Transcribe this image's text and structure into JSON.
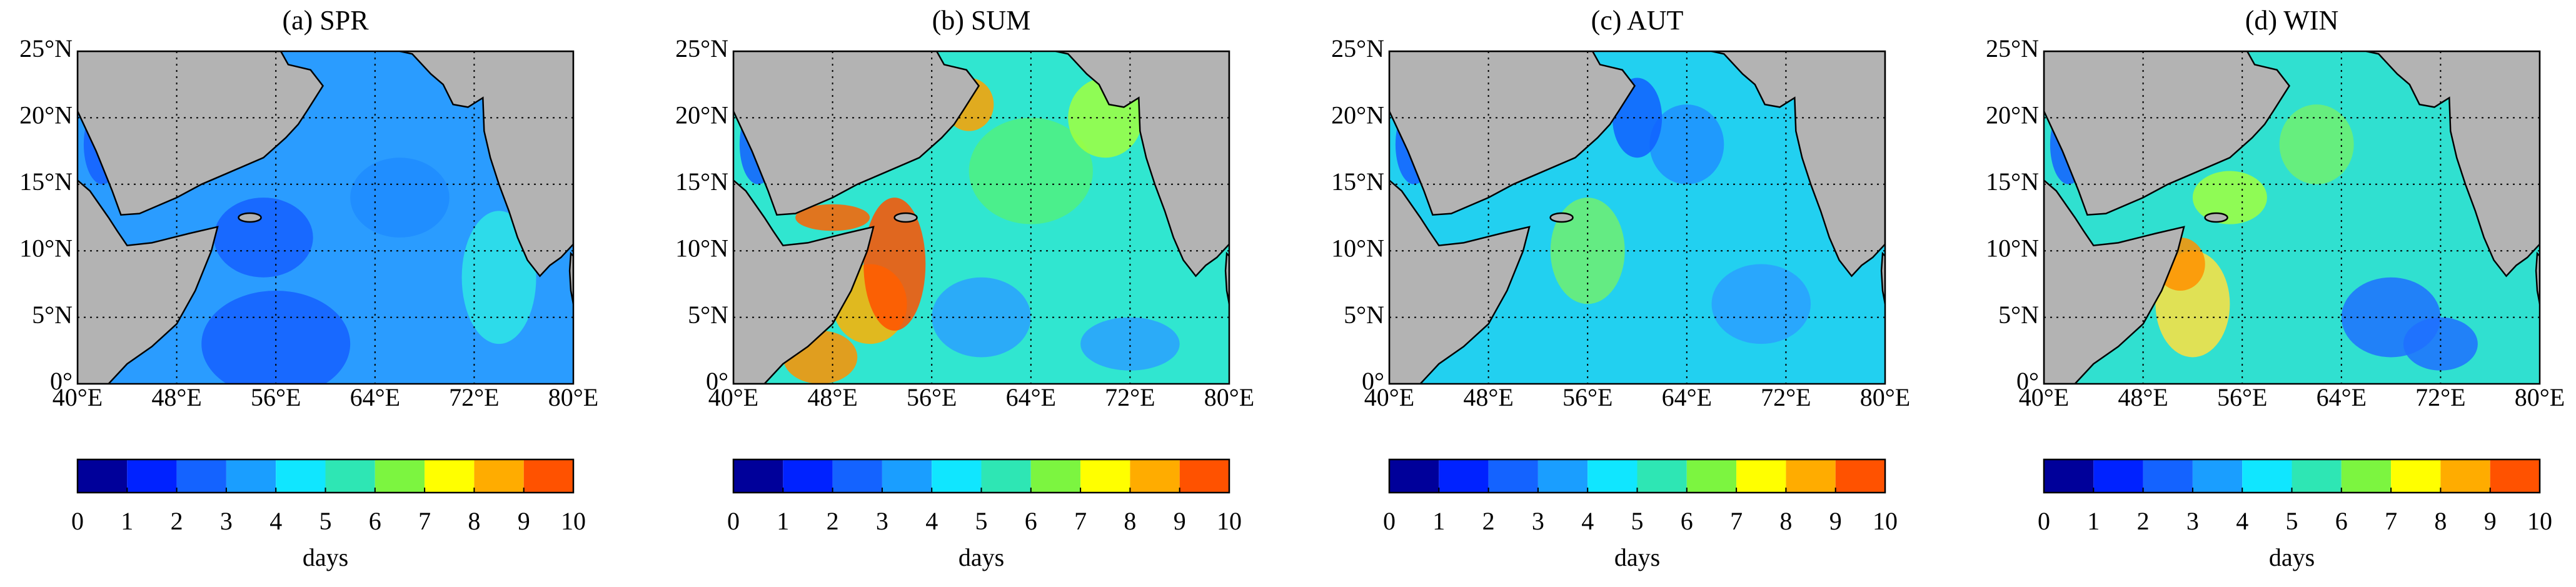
{
  "chart_data": [
    {
      "type": "heatmap",
      "title": "(a) SPR",
      "xlim": [
        40,
        80
      ],
      "xticks": [
        {
          "value": 40,
          "label": "40°E"
        },
        {
          "value": 48,
          "label": "48°E"
        },
        {
          "value": 56,
          "label": "56°E"
        },
        {
          "value": 64,
          "label": "64°E"
        },
        {
          "value": 72,
          "label": "72°E"
        },
        {
          "value": 80,
          "label": "80°E"
        }
      ],
      "ylim": [
        0,
        25
      ],
      "yticks": [
        {
          "value": 0,
          "label": "0°"
        },
        {
          "value": 5,
          "label": "5°N"
        },
        {
          "value": 10,
          "label": "10°N"
        },
        {
          "value": 15,
          "label": "15°N"
        },
        {
          "value": 20,
          "label": "20°N"
        },
        {
          "value": 25,
          "label": "25°N"
        }
      ],
      "grid": true,
      "colorbar": {
        "label": "days",
        "ticks": [
          0,
          1,
          2,
          3,
          4,
          5,
          6,
          7,
          8,
          9,
          10
        ],
        "colors": [
          "#00009a",
          "#0022ff",
          "#1463ff",
          "#1a9eff",
          "#10e6ff",
          "#2ee6b4",
          "#7cf540",
          "#ffff00",
          "#ffac00",
          "#ff5200"
        ]
      }
    },
    {
      "type": "heatmap",
      "title": "(b) SUM",
      "xlim": [
        40,
        80
      ],
      "xticks": [
        {
          "value": 40,
          "label": "40°E"
        },
        {
          "value": 48,
          "label": "48°E"
        },
        {
          "value": 56,
          "label": "56°E"
        },
        {
          "value": 64,
          "label": "64°E"
        },
        {
          "value": 72,
          "label": "72°E"
        },
        {
          "value": 80,
          "label": "80°E"
        }
      ],
      "ylim": [
        0,
        25
      ],
      "yticks": [
        {
          "value": 0,
          "label": "0°"
        },
        {
          "value": 5,
          "label": "5°N"
        },
        {
          "value": 10,
          "label": "10°N"
        },
        {
          "value": 15,
          "label": "15°N"
        },
        {
          "value": 20,
          "label": "20°N"
        },
        {
          "value": 25,
          "label": "25°N"
        }
      ],
      "grid": true,
      "colorbar": {
        "label": "days",
        "ticks": [
          0,
          1,
          2,
          3,
          4,
          5,
          6,
          7,
          8,
          9,
          10
        ],
        "colors": [
          "#00009a",
          "#0022ff",
          "#1463ff",
          "#1a9eff",
          "#10e6ff",
          "#2ee6b4",
          "#7cf540",
          "#ffff00",
          "#ffac00",
          "#ff5200"
        ]
      }
    },
    {
      "type": "heatmap",
      "title": "(c) AUT",
      "xlim": [
        40,
        80
      ],
      "xticks": [
        {
          "value": 40,
          "label": "40°E"
        },
        {
          "value": 48,
          "label": "48°E"
        },
        {
          "value": 56,
          "label": "56°E"
        },
        {
          "value": 64,
          "label": "64°E"
        },
        {
          "value": 72,
          "label": "72°E"
        },
        {
          "value": 80,
          "label": "80°E"
        }
      ],
      "ylim": [
        0,
        25
      ],
      "yticks": [
        {
          "value": 0,
          "label": "0°"
        },
        {
          "value": 5,
          "label": "5°N"
        },
        {
          "value": 10,
          "label": "10°N"
        },
        {
          "value": 15,
          "label": "15°N"
        },
        {
          "value": 20,
          "label": "20°N"
        },
        {
          "value": 25,
          "label": "25°N"
        }
      ],
      "grid": true,
      "colorbar": {
        "label": "days",
        "ticks": [
          0,
          1,
          2,
          3,
          4,
          5,
          6,
          7,
          8,
          9,
          10
        ],
        "colors": [
          "#00009a",
          "#0022ff",
          "#1463ff",
          "#1a9eff",
          "#10e6ff",
          "#2ee6b4",
          "#7cf540",
          "#ffff00",
          "#ffac00",
          "#ff5200"
        ]
      }
    },
    {
      "type": "heatmap",
      "title": "(d) WIN",
      "xlim": [
        40,
        80
      ],
      "xticks": [
        {
          "value": 40,
          "label": "40°E"
        },
        {
          "value": 48,
          "label": "48°E"
        },
        {
          "value": 56,
          "label": "56°E"
        },
        {
          "value": 64,
          "label": "64°E"
        },
        {
          "value": 72,
          "label": "72°E"
        },
        {
          "value": 80,
          "label": "80°E"
        }
      ],
      "ylim": [
        0,
        25
      ],
      "yticks": [
        {
          "value": 0,
          "label": "0°"
        },
        {
          "value": 5,
          "label": "5°N"
        },
        {
          "value": 10,
          "label": "10°N"
        },
        {
          "value": 15,
          "label": "15°N"
        },
        {
          "value": 20,
          "label": "20°N"
        },
        {
          "value": 25,
          "label": "25°N"
        }
      ],
      "grid": true,
      "colorbar": {
        "label": "days",
        "ticks": [
          0,
          1,
          2,
          3,
          4,
          5,
          6,
          7,
          8,
          9,
          10
        ],
        "colors": [
          "#00009a",
          "#0022ff",
          "#1463ff",
          "#1a9eff",
          "#10e6ff",
          "#2ee6b4",
          "#7cf540",
          "#ffff00",
          "#ffac00",
          "#ff5200"
        ]
      }
    }
  ]
}
